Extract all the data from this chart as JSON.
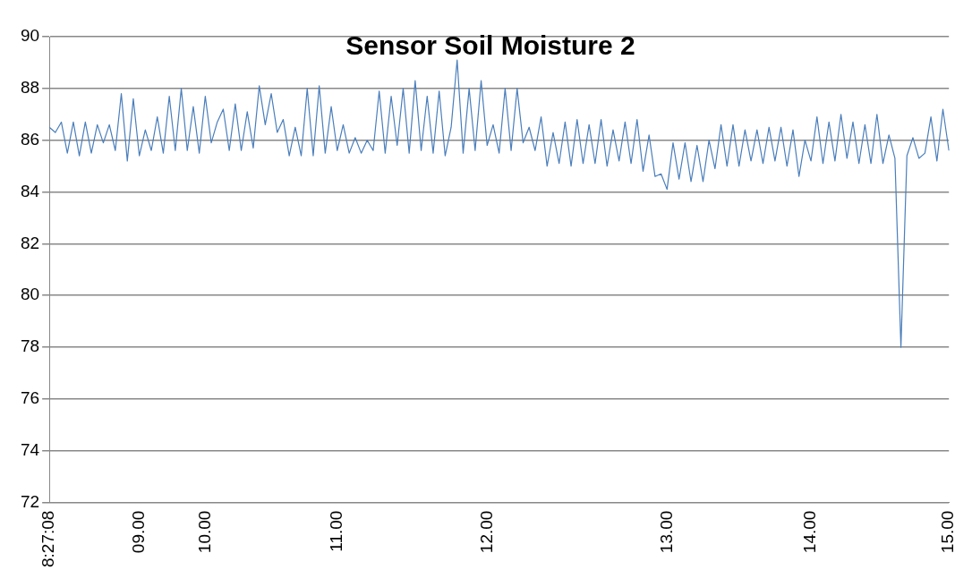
{
  "chart_data": {
    "type": "line",
    "title": "Sensor Soil Moisture 2",
    "categories": [
      "8:27:08",
      null,
      null,
      null,
      null,
      null,
      null,
      null,
      null,
      null,
      null,
      null,
      null,
      null,
      null,
      "09.00",
      null,
      null,
      null,
      null,
      null,
      null,
      null,
      null,
      null,
      null,
      "10.00",
      null,
      null,
      null,
      null,
      null,
      null,
      null,
      null,
      null,
      null,
      null,
      null,
      null,
      null,
      null,
      null,
      null,
      null,
      null,
      null,
      null,
      "11.00",
      null,
      null,
      null,
      null,
      null,
      null,
      null,
      null,
      null,
      null,
      null,
      null,
      null,
      null,
      null,
      null,
      null,
      null,
      null,
      null,
      null,
      null,
      null,
      null,
      "12.00",
      null,
      null,
      null,
      null,
      null,
      null,
      null,
      null,
      null,
      null,
      null,
      null,
      null,
      null,
      null,
      null,
      null,
      null,
      null,
      null,
      null,
      null,
      null,
      null,
      null,
      null,
      null,
      null,
      null,
      "13.00",
      null,
      null,
      null,
      null,
      null,
      null,
      null,
      null,
      null,
      null,
      null,
      null,
      null,
      null,
      null,
      null,
      null,
      null,
      null,
      null,
      null,
      null,
      null,
      "14.00",
      null,
      null,
      null,
      null,
      null,
      null,
      null,
      null,
      null,
      null,
      null,
      null,
      null,
      null,
      null,
      null,
      null,
      null,
      null,
      null,
      null,
      null,
      "15.00"
    ],
    "series": [
      {
        "color": "#4a7ebb",
        "values": [
          86.5,
          86.3,
          86.7,
          85.5,
          86.7,
          85.4,
          86.7,
          85.5,
          86.6,
          85.9,
          86.6,
          85.6,
          87.8,
          85.2,
          87.6,
          85.4,
          86.4,
          85.6,
          86.9,
          85.5,
          87.7,
          85.6,
          88.0,
          85.6,
          87.3,
          85.5,
          87.7,
          85.9,
          86.7,
          87.2,
          85.6,
          87.4,
          85.6,
          87.1,
          85.7,
          88.1,
          86.6,
          87.8,
          86.3,
          86.8,
          85.4,
          86.5,
          85.4,
          88.0,
          85.4,
          88.1,
          85.5,
          87.3,
          85.6,
          86.6,
          85.5,
          86.1,
          85.5,
          86.0,
          85.6,
          87.9,
          85.5,
          87.7,
          85.8,
          88.0,
          85.5,
          88.3,
          85.6,
          87.7,
          85.5,
          87.9,
          85.4,
          86.5,
          89.1,
          85.5,
          88.0,
          85.6,
          88.3,
          85.8,
          86.6,
          85.5,
          88.0,
          85.6,
          88.0,
          85.9,
          86.5,
          85.6,
          86.9,
          85.0,
          86.3,
          85.1,
          86.7,
          85.0,
          86.8,
          85.1,
          86.6,
          85.1,
          86.8,
          85.0,
          86.4,
          85.2,
          86.7,
          85.1,
          86.8,
          84.8,
          86.2,
          84.6,
          84.7,
          84.1,
          85.9,
          84.5,
          85.9,
          84.4,
          85.8,
          84.4,
          86.0,
          84.9,
          86.6,
          85.0,
          86.6,
          85.0,
          86.4,
          85.2,
          86.4,
          85.1,
          86.5,
          85.2,
          86.5,
          85.0,
          86.4,
          84.6,
          86.0,
          85.2,
          86.9,
          85.1,
          86.7,
          85.2,
          87.0,
          85.3,
          86.7,
          85.1,
          86.6,
          85.1,
          87.0,
          85.1,
          86.2,
          85.3,
          78.0,
          85.4,
          86.1,
          85.3,
          85.5,
          86.9,
          85.2,
          87.2,
          85.6
        ]
      }
    ],
    "ylim": [
      72,
      90
    ],
    "yticks": [
      72,
      74,
      76,
      78,
      80,
      82,
      84,
      86,
      88,
      90
    ],
    "grid": "y",
    "legend": false,
    "marker": "none",
    "line_style": "solid"
  }
}
